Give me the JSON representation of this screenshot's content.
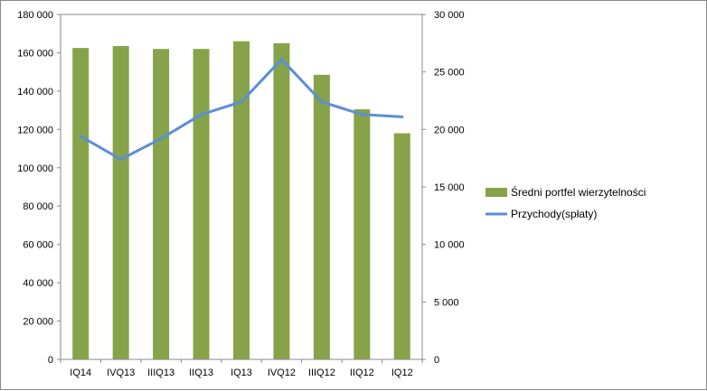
{
  "chart_data": {
    "type": "bar",
    "categories": [
      "IQ14",
      "IVQ13",
      "IIIQ13",
      "IIQ13",
      "IQ13",
      "IVQ12",
      "IIIQ12",
      "IIQ12",
      "IQ12"
    ],
    "series": [
      {
        "name": "Średni portfel wierzytelności",
        "type": "bar",
        "axis": "left",
        "color": "#86A34A",
        "values": [
          162500,
          163500,
          162000,
          162000,
          166000,
          165000,
          148500,
          130500,
          118000
        ]
      },
      {
        "name": "Przychody(spłaty)",
        "type": "line",
        "axis": "right",
        "color": "#5B8ED6",
        "values": [
          19400,
          17400,
          19200,
          21300,
          22400,
          26100,
          22400,
          21300,
          21100
        ]
      }
    ],
    "left_axis": {
      "ylim": [
        0,
        180000
      ],
      "ticks": [
        0,
        20000,
        40000,
        60000,
        80000,
        100000,
        120000,
        140000,
        160000,
        180000
      ],
      "tick_labels": [
        "0",
        "20 000",
        "40 000",
        "60 000",
        "80 000",
        "100 000",
        "120 000",
        "140 000",
        "160 000",
        "180 000"
      ]
    },
    "right_axis": {
      "ylim": [
        0,
        30000
      ],
      "ticks": [
        0,
        5000,
        10000,
        15000,
        20000,
        25000,
        30000
      ],
      "tick_labels": [
        "0",
        "5 000",
        "10 000",
        "15 000",
        "20 000",
        "25 000",
        "30 000"
      ]
    },
    "grid": false,
    "legend_position": "right"
  }
}
